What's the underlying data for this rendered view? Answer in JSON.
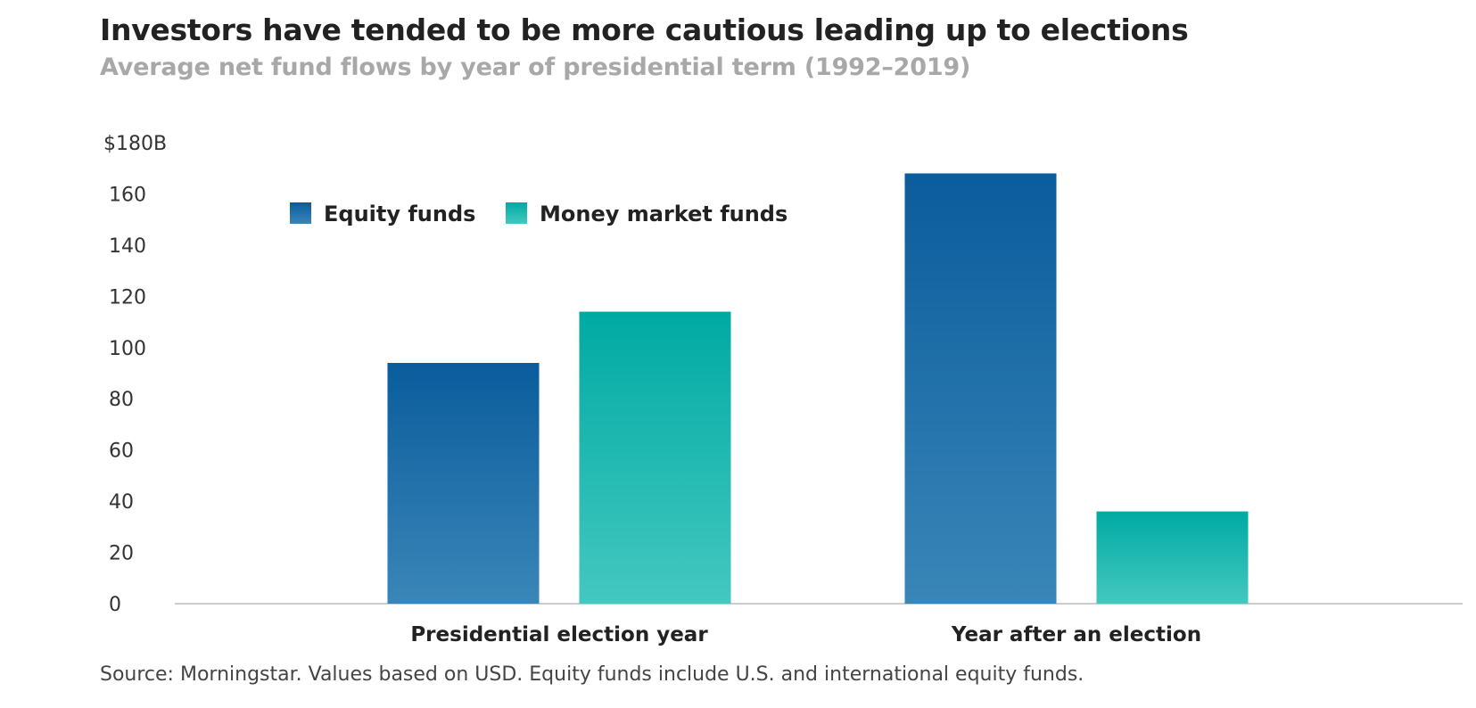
{
  "header": {
    "title": "Investors have tended to be more cautious leading up to elections",
    "subtitle": "Average net fund flows by year of presidential term (1992–2019)"
  },
  "footer": {
    "source": "Source: Morningstar. Values based on USD. Equity funds include U.S. and international equity funds."
  },
  "colors": {
    "equity_top": "#0a5c9c",
    "equity_bottom": "#3a86b8",
    "money_top": "#00aaa3",
    "money_bottom": "#44c8c0",
    "axis": "#cccccc"
  },
  "chart_data": {
    "type": "bar",
    "title": "Investors have tended to be more cautious leading up to elections",
    "subtitle": "Average net fund flows by year of presidential term (1992–2019)",
    "categories": [
      "Presidential election year",
      "Year after an election"
    ],
    "series": [
      {
        "name": "Equity funds",
        "values": [
          94,
          168
        ]
      },
      {
        "name": "Money market funds",
        "values": [
          114,
          36
        ]
      }
    ],
    "yticks": [
      "0",
      "20",
      "40",
      "60",
      "80",
      "100",
      "120",
      "140",
      "160",
      "$180B"
    ],
    "ytick_values": [
      0,
      20,
      40,
      60,
      80,
      100,
      120,
      140,
      160,
      180
    ],
    "ylim": [
      0,
      180
    ],
    "xlabel": "",
    "ylabel": "",
    "legend_position": "top-left",
    "grid": false
  }
}
